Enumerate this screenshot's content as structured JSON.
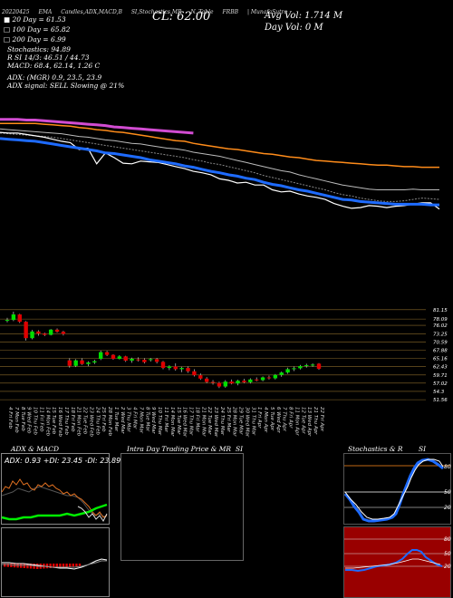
{
  "header": {
    "items": [
      "20220425",
      "EMA",
      "Candles,ADX,MACD,B",
      "SI,Stochastics,MR",
      "N. Table",
      "FRBB",
      "| MunafaSutra"
    ],
    "cl_text": "CL: 62.00",
    "avg_vol_text": "Avg Vol: 1.714 M",
    "day_vol_text": "Day Vol: 0 M"
  },
  "stats": [
    "20 Day = 61.53",
    "100 Day = 65.82",
    "200 Day = 6.99",
    "Stochastics: 94.89",
    "R SI 14/3: 46.51 / 44.73",
    "MACD: 68.4, 62.14, 1.26 C",
    "ADX: (MGR) 0.9, 23.5, 23.9",
    "ADX signal: SELL Slowing @ 21%"
  ],
  "chart_data": [
    {
      "type": "line",
      "name": "price-ema-panel",
      "x_points": 51,
      "series": [
        {
          "role": "price",
          "color": "#ffffff",
          "values": [
            73.6,
            73.5,
            73.5,
            73.3,
            73.1,
            72.9,
            72.6,
            72.3,
            72.1,
            71.1,
            71.3,
            69.0,
            70.6,
            69.9,
            69.1,
            69.0,
            69.4,
            69.3,
            69.2,
            68.9,
            68.6,
            68.3,
            67.9,
            67.7,
            67.4,
            66.8,
            66.6,
            66.2,
            66.3,
            65.9,
            65.9,
            65.2,
            64.9,
            65.0,
            64.6,
            64.3,
            64.1,
            63.8,
            63.2,
            62.8,
            62.5,
            62.6,
            62.9,
            62.8,
            62.6,
            62.8,
            62.9,
            63.1,
            63.3,
            63.3,
            62.4
          ]
        },
        {
          "role": "ema-blue",
          "color": "#1e6bff",
          "values": [
            72.7,
            72.6,
            72.5,
            72.4,
            72.3,
            72.1,
            71.9,
            71.7,
            71.5,
            71.3,
            71.1,
            70.9,
            70.6,
            70.5,
            70.3,
            70.1,
            69.9,
            69.6,
            69.4,
            69.2,
            69.0,
            68.7,
            68.5,
            68.2,
            67.9,
            67.7,
            67.4,
            67.2,
            66.9,
            66.7,
            66.3,
            66.0,
            65.8,
            65.5,
            65.2,
            65.0,
            64.7,
            64.4,
            64.1,
            63.8,
            63.7,
            63.5,
            63.4,
            63.3,
            63.2,
            63.1,
            63.1,
            63.1,
            63.1,
            63.0,
            63.0
          ]
        },
        {
          "role": "ema-orange",
          "color": "#ff8c1a",
          "values": [
            74.9,
            74.9,
            74.9,
            74.9,
            74.9,
            74.8,
            74.7,
            74.6,
            74.5,
            74.3,
            74.2,
            74.0,
            73.9,
            73.7,
            73.6,
            73.4,
            73.2,
            73.0,
            72.8,
            72.6,
            72.4,
            72.3,
            72.0,
            71.8,
            71.6,
            71.4,
            71.2,
            71.1,
            70.9,
            70.7,
            70.5,
            70.4,
            70.2,
            70.0,
            69.9,
            69.7,
            69.5,
            69.4,
            69.3,
            69.2,
            69.1,
            69.0,
            68.9,
            68.8,
            68.8,
            68.7,
            68.6,
            68.6,
            68.5,
            68.5,
            68.5
          ]
        },
        {
          "role": "ema-violet",
          "color": "#d24cd2",
          "values": [
            75.5,
            75.5,
            75.5,
            75.4,
            75.4,
            75.3,
            75.2,
            75.1,
            75.0,
            74.9,
            74.8,
            74.7,
            74.6,
            74.4,
            74.3,
            74.2,
            74.1,
            74.0,
            73.9,
            73.8,
            73.7,
            73.6,
            73.5
          ]
        },
        {
          "role": "ema-gray-1",
          "color": "#bbbbbb",
          "values": [
            74.1,
            74.0,
            73.9,
            73.8,
            73.7,
            73.6,
            73.5,
            73.4,
            73.2,
            73.0,
            72.9,
            72.7,
            72.5,
            72.4,
            72.2,
            72.0,
            71.9,
            71.7,
            71.5,
            71.3,
            71.2,
            71.0,
            70.7,
            70.5,
            70.3,
            70.1,
            69.8,
            69.5,
            69.2,
            68.9,
            68.6,
            68.3,
            68.0,
            67.8,
            67.4,
            67.1,
            66.8,
            66.5,
            66.2,
            65.9,
            65.7,
            65.5,
            65.3,
            65.2,
            65.2,
            65.2,
            65.2,
            65.3,
            65.2,
            65.2,
            65.2
          ]
        },
        {
          "role": "ema-gray-2",
          "color": "#888888",
          "values": [
            73.5,
            73.4,
            73.3,
            73.2,
            73.1,
            73.0,
            72.9,
            72.7,
            72.5,
            72.3,
            72.1,
            71.9,
            71.7,
            71.5,
            71.3,
            71.1,
            70.9,
            70.7,
            70.5,
            70.3,
            70.1,
            69.9,
            69.6,
            69.4,
            69.1,
            68.9,
            68.6,
            68.3,
            68.0,
            67.7,
            67.3,
            67.0,
            66.7,
            66.4,
            66.1,
            65.8,
            65.5,
            65.2,
            64.8,
            64.5,
            64.3,
            64.0,
            63.8,
            63.6,
            63.5,
            63.5,
            63.6,
            63.8,
            64.0,
            63.9,
            63.8
          ]
        }
      ]
    },
    {
      "type": "candlestick",
      "name": "price-levels-panel",
      "level_labels": [
        "78.09",
        "81.15",
        "76.02",
        "73.25",
        "70.59",
        "67.88",
        "65.16",
        "62.43",
        "59.71",
        "57.02",
        "54.3",
        "51.56"
      ],
      "level_values": [
        78.09,
        81.15,
        76.02,
        73.25,
        70.59,
        67.88,
        65.16,
        62.43,
        59.71,
        57.02,
        54.3,
        51.56
      ],
      "candles": [
        [
          77.5,
          78.5,
          77.0,
          77.8
        ],
        [
          77.8,
          80.5,
          77.4,
          79.6
        ],
        [
          79.6,
          79.8,
          76.8,
          77.2
        ],
        [
          77.2,
          77.4,
          71.0,
          71.8
        ],
        [
          71.8,
          74.5,
          71.4,
          74.0
        ],
        [
          74.0,
          74.4,
          72.6,
          73.3
        ],
        [
          73.3,
          73.6,
          72.5,
          72.9
        ],
        [
          72.9,
          74.8,
          72.7,
          74.6
        ],
        [
          74.6,
          75.0,
          73.6,
          73.9
        ],
        [
          73.9,
          74.2,
          72.7,
          73.2
        ],
        [
          64.5,
          65.2,
          62.1,
          62.7
        ],
        [
          62.7,
          64.9,
          62.3,
          64.5
        ],
        [
          64.5,
          65.2,
          63.0,
          63.3
        ],
        [
          63.3,
          64.2,
          62.6,
          63.8
        ],
        [
          63.8,
          64.7,
          63.3,
          64.2
        ],
        [
          65.0,
          67.7,
          64.6,
          67.2
        ],
        [
          67.2,
          67.6,
          65.9,
          66.3
        ],
        [
          66.3,
          66.5,
          64.7,
          65.0
        ],
        [
          65.0,
          66.2,
          64.8,
          65.8
        ],
        [
          65.8,
          66.0,
          64.0,
          64.4
        ],
        [
          64.4,
          65.4,
          63.7,
          65.0
        ],
        [
          64.8,
          65.5,
          64.1,
          64.7
        ],
        [
          64.7,
          65.2,
          63.5,
          63.9
        ],
        [
          64.6,
          65.3,
          64.1,
          64.9
        ],
        [
          64.9,
          65.3,
          63.5,
          64.0
        ],
        [
          64.0,
          64.3,
          61.6,
          62.0
        ],
        [
          62.0,
          62.9,
          61.3,
          62.5
        ],
        [
          62.5,
          63.5,
          61.1,
          61.6
        ],
        [
          61.6,
          62.4,
          60.6,
          62.0
        ],
        [
          62.0,
          62.5,
          60.4,
          60.9
        ],
        [
          60.9,
          61.6,
          59.2,
          59.6
        ],
        [
          59.6,
          60.2,
          58.1,
          58.5
        ],
        [
          58.5,
          59.0,
          57.0,
          57.4
        ],
        [
          57.4,
          58.0,
          56.5,
          57.1
        ],
        [
          57.1,
          57.5,
          55.4,
          55.9
        ],
        [
          55.9,
          58.0,
          55.5,
          57.5
        ],
        [
          57.5,
          58.2,
          56.6,
          56.9
        ],
        [
          56.9,
          58.1,
          56.3,
          57.8
        ],
        [
          57.8,
          58.4,
          57.0,
          57.3
        ],
        [
          57.3,
          58.6,
          56.9,
          58.2
        ],
        [
          58.2,
          58.9,
          57.6,
          58.0
        ],
        [
          58.0,
          59.2,
          57.6,
          58.9
        ],
        [
          58.9,
          59.5,
          58.2,
          58.6
        ],
        [
          58.6,
          60.0,
          58.2,
          59.7
        ],
        [
          59.7,
          60.8,
          59.1,
          60.5
        ],
        [
          60.5,
          62.1,
          60.1,
          61.6
        ],
        [
          61.6,
          62.5,
          61.0,
          61.9
        ],
        [
          61.9,
          63.0,
          61.5,
          62.6
        ],
        [
          62.6,
          63.4,
          62.1,
          62.9
        ],
        [
          62.9,
          63.5,
          62.4,
          63.1
        ],
        [
          63.4,
          63.6,
          61.4,
          61.7
        ]
      ],
      "dates": [
        "4 Fri",
        "7 Mon",
        "8 Tue",
        "9 Wed",
        "10 Thu",
        "11 Fri",
        "14 Mon",
        "15 Tue",
        "16 Wed",
        "17 Thu",
        "18 Fri",
        "21 Mon",
        "22 Tue",
        "23 Wed",
        "24 Thu",
        "25 Fri",
        "28 Mon",
        "1 Tue",
        "2 Wed",
        "3 Thu",
        "4 Fri",
        "7 Mon",
        "8 Tue",
        "9 Wed",
        "10 Thu",
        "11 Fri",
        "14 Mon",
        "15 Tue",
        "16 Wed",
        "17 Thu",
        "18 Fri",
        "21 Mon",
        "22 Tue",
        "23 Wed",
        "24 Thu",
        "25 Fri",
        "28 Mon",
        "29 Tue",
        "30 Wed",
        "31 Thu",
        "1 Fri",
        "4 Mon",
        "5 Tue",
        "6 Wed",
        "7 Thu",
        "8 Fri",
        "11 Mon",
        "12 Tue",
        "13 Wed",
        "21 Thu",
        "22 Fri"
      ],
      "months": [
        "Feb",
        "Feb",
        "Feb",
        "Feb",
        "Feb",
        "Feb",
        "Feb",
        "Feb",
        "Feb",
        "Feb",
        "Feb",
        "Feb",
        "Feb",
        "Feb",
        "Feb",
        "Feb",
        "Feb",
        "Mar",
        "Mar",
        "Mar",
        "Mar",
        "Mar",
        "Mar",
        "Mar",
        "Mar",
        "Mar",
        "Mar",
        "Mar",
        "Mar",
        "Mar",
        "Mar",
        "Mar",
        "Mar",
        "Mar",
        "Mar",
        "Mar",
        "Mar",
        "Mar",
        "Mar",
        "Mar",
        "Apr",
        "Apr",
        "Apr",
        "Apr",
        "Apr",
        "Apr",
        "Apr",
        "Apr",
        "Apr",
        "Apr",
        "Apr"
      ],
      "up_color": "#00e000",
      "down_color": "#e00000"
    }
  ],
  "panels": {
    "adx": {
      "title": "ADX & MACD",
      "readout": "ADX: 0.93 +DI: 23.45 -DI: 23.89"
    },
    "intraday": {
      "title": "Intra Day Trading Price & MR",
      "si_label": "SI"
    },
    "stoch": {
      "title": "Stochastics & R",
      "si_label": "SI",
      "ticks": [
        "80",
        "50",
        "20"
      ],
      "rsi_ticks": [
        "80",
        "50",
        "20"
      ],
      "bg_color": "#990000"
    }
  }
}
